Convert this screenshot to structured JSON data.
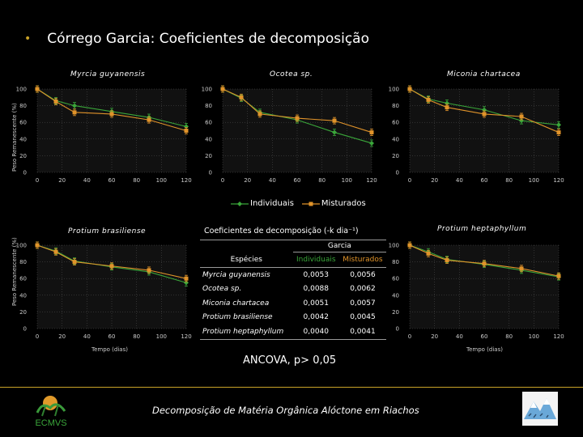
{
  "slide": {
    "bullet": "•",
    "title": "Córrego Garcia: Coeficientes de decomposição",
    "legend_individuais": "Individuais",
    "legend_misturados": "Misturados",
    "ylabel": "Peso Remanescente (%)",
    "xlabel": "Tempo (dias)",
    "ancova": "ANCOVA, p> 0,05",
    "footer": "Decomposição de Matéria Orgânica Alóctone em Riachos",
    "logo_text": "ECMVS",
    "colors": {
      "individuais": "#3aa63a",
      "misturados": "#e0932a",
      "accent": "#c9a227",
      "grid": "#555555"
    }
  },
  "chart_data": [
    {
      "type": "line",
      "title": "Myrcia guyanensis",
      "xlabel": "",
      "ylabel": "Peso Remanescente (%)",
      "xlim": [
        0,
        120
      ],
      "ylim": [
        0,
        100
      ],
      "xticks": [
        0,
        20,
        40,
        60,
        80,
        100,
        120
      ],
      "yticks": [
        0,
        20,
        40,
        60,
        80,
        100
      ],
      "series": [
        {
          "name": "Individuais",
          "x": [
            0,
            15,
            30,
            60,
            90,
            120
          ],
          "y": [
            100,
            86,
            80,
            73,
            66,
            55
          ]
        },
        {
          "name": "Misturados",
          "x": [
            0,
            15,
            30,
            60,
            90,
            120
          ],
          "y": [
            100,
            85,
            72,
            70,
            63,
            50
          ]
        }
      ]
    },
    {
      "type": "line",
      "title": "Ocotea sp.",
      "xlabel": "",
      "ylabel": "",
      "xlim": [
        0,
        120
      ],
      "ylim": [
        0,
        100
      ],
      "xticks": [
        0,
        20,
        40,
        60,
        80,
        100,
        120
      ],
      "yticks": [
        0,
        20,
        40,
        60,
        80,
        100
      ],
      "series": [
        {
          "name": "Individuais",
          "x": [
            0,
            15,
            30,
            60,
            90,
            120
          ],
          "y": [
            100,
            89,
            72,
            63,
            48,
            35
          ]
        },
        {
          "name": "Misturados",
          "x": [
            0,
            15,
            30,
            60,
            90,
            120
          ],
          "y": [
            100,
            90,
            70,
            65,
            62,
            48
          ]
        }
      ]
    },
    {
      "type": "line",
      "title": "Miconia chartacea",
      "xlabel": "",
      "ylabel": "",
      "xlim": [
        0,
        120
      ],
      "ylim": [
        0,
        100
      ],
      "xticks": [
        0,
        20,
        40,
        60,
        80,
        100,
        120
      ],
      "yticks": [
        0,
        20,
        40,
        60,
        80,
        100
      ],
      "series": [
        {
          "name": "Individuais",
          "x": [
            0,
            15,
            30,
            60,
            90,
            120
          ],
          "y": [
            100,
            88,
            83,
            75,
            62,
            57
          ]
        },
        {
          "name": "Misturados",
          "x": [
            0,
            15,
            30,
            60,
            90,
            120
          ],
          "y": [
            100,
            87,
            78,
            70,
            67,
            48
          ]
        }
      ]
    },
    {
      "type": "line",
      "title": "Protium brasiliense",
      "xlabel": "Tempo (dias)",
      "ylabel": "Peso Remanescente (%)",
      "xlim": [
        0,
        120
      ],
      "ylim": [
        0,
        100
      ],
      "xticks": [
        0,
        20,
        40,
        60,
        80,
        100,
        120
      ],
      "yticks": [
        0,
        20,
        40,
        60,
        80,
        100
      ],
      "series": [
        {
          "name": "Individuais",
          "x": [
            0,
            15,
            30,
            60,
            90,
            120
          ],
          "y": [
            100,
            93,
            81,
            74,
            68,
            55
          ]
        },
        {
          "name": "Misturados",
          "x": [
            0,
            15,
            30,
            60,
            90,
            120
          ],
          "y": [
            100,
            92,
            80,
            75,
            70,
            60
          ]
        }
      ]
    },
    {
      "type": "line",
      "title": "Protium heptaphyllum",
      "xlabel": "Tempo (dias)",
      "ylabel": "",
      "xlim": [
        0,
        120
      ],
      "ylim": [
        0,
        100
      ],
      "xticks": [
        0,
        20,
        40,
        60,
        80,
        100,
        120
      ],
      "yticks": [
        0,
        20,
        40,
        60,
        80,
        100
      ],
      "series": [
        {
          "name": "Individuais",
          "x": [
            0,
            15,
            30,
            60,
            90,
            120
          ],
          "y": [
            100,
            92,
            83,
            77,
            70,
            62
          ]
        },
        {
          "name": "Misturados",
          "x": [
            0,
            15,
            30,
            60,
            90,
            120
          ],
          "y": [
            100,
            90,
            82,
            78,
            72,
            63
          ]
        }
      ]
    },
    {
      "type": "table",
      "title": "Coeficientes de decomposição (-k dia⁻¹)",
      "group_header": "Garcia",
      "columns": [
        "Espécies",
        "Individuais",
        "Misturados"
      ],
      "rows": [
        [
          "Myrcia guyanensis",
          "0,0053",
          "0,0056"
        ],
        [
          "Ocotea sp.",
          "0,0088",
          "0,0062"
        ],
        [
          "Miconia chartacea",
          "0,0051",
          "0,0057"
        ],
        [
          "Protium brasiliense",
          "0,0042",
          "0,0045"
        ],
        [
          "Protium heptaphyllum",
          "0,0040",
          "0,0041"
        ]
      ]
    }
  ]
}
